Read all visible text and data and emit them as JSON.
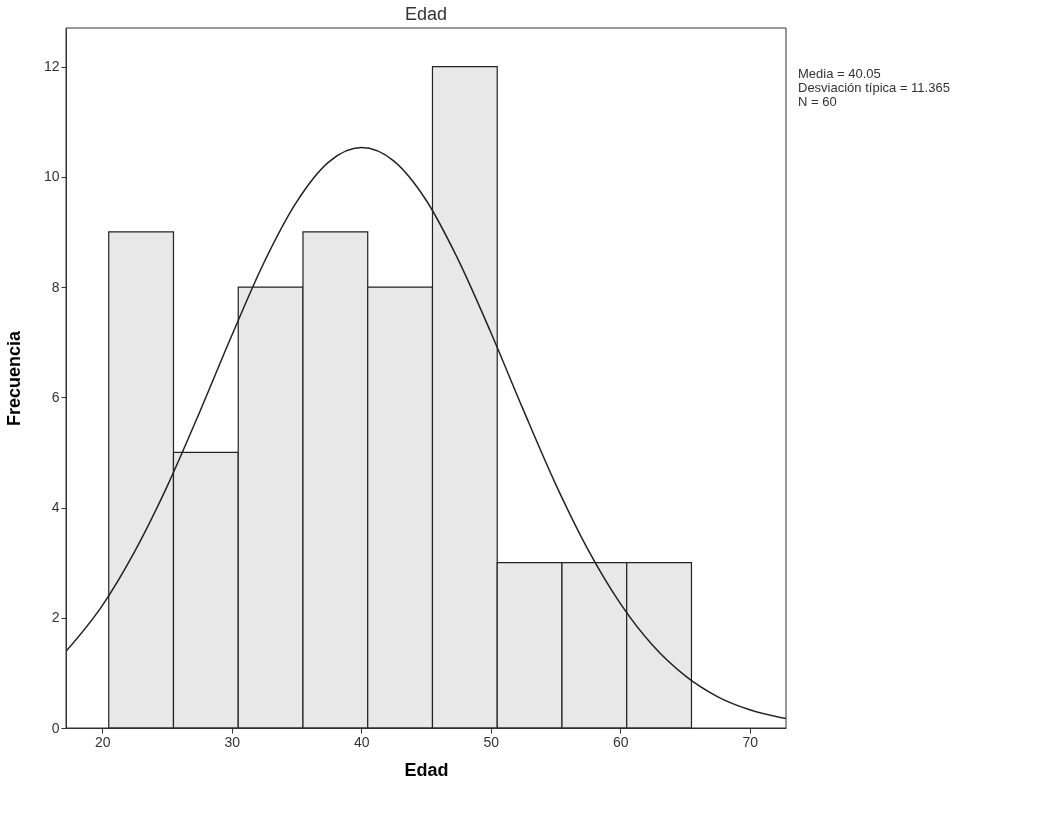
{
  "chart_data": {
    "type": "histogram",
    "title": "Edad",
    "xlabel": "Edad",
    "ylabel": "Frecuencia",
    "bins": [
      20.5,
      25.5,
      30.5,
      35.5,
      40.5,
      45.5,
      50.5,
      55.5,
      60.5,
      65.5
    ],
    "values": [
      9,
      5,
      8,
      9,
      8,
      12,
      3,
      3,
      3
    ],
    "color": "#e8e8e8",
    "series": [
      {
        "type": "line",
        "color": "#222222",
        "x": [
          17.2,
          20,
          22.5,
          25,
          27.5,
          30,
          32.5,
          35,
          37.5,
          40,
          42.5,
          45,
          47.5,
          50,
          52.5,
          55,
          57.5,
          60,
          62.5,
          65,
          67.5,
          70,
          72.8
        ],
        "values": [
          1.39,
          2.22,
          3.2,
          4.38,
          5.72,
          7.12,
          8.45,
          9.54,
          10.27,
          10.53,
          10.29,
          9.58,
          8.49,
          7.18,
          5.78,
          4.43,
          3.24,
          2.26,
          1.5,
          0.95,
          0.57,
          0.33,
          0.17
        ]
      }
    ],
    "xlim": [
      17.2,
      72.8
    ],
    "xticks": [
      20,
      30,
      40,
      50,
      60,
      70
    ],
    "ylim": [
      0,
      12.7
    ],
    "yticks": [
      0,
      2,
      4,
      6,
      8,
      10,
      12
    ],
    "annotations": [
      "Media = 40.05",
      "Desviación típica = 11.365",
      "N = 60"
    ],
    "grid": false
  }
}
